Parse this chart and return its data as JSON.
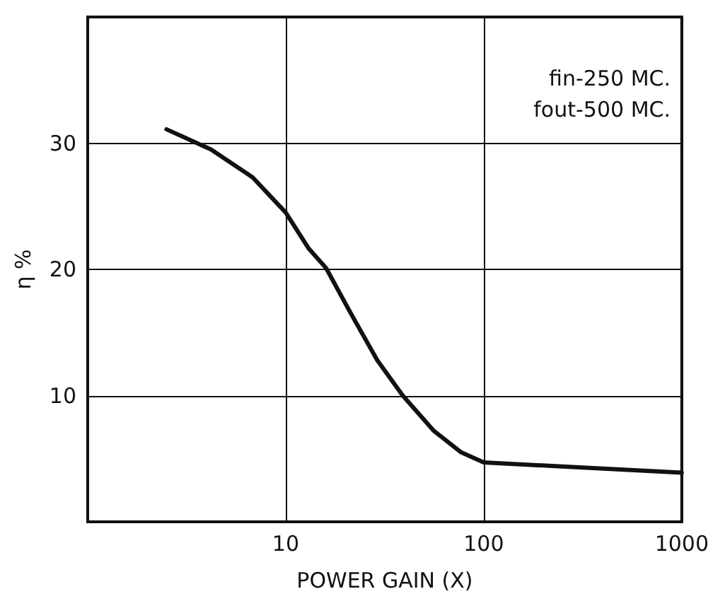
{
  "chart_data": {
    "type": "line",
    "xlabel": "POWER GAIN (X)",
    "ylabel": "η %",
    "annotations": [
      "fin-250 MC.",
      "fout-500 MC."
    ],
    "x": [
      2.5,
      4.2,
      6.8,
      10,
      13,
      16,
      21,
      29,
      39,
      56,
      77,
      100,
      240,
      1000
    ],
    "series": [
      {
        "color": "#111111",
        "values": [
          31.1,
          29.5,
          27.3,
          24.5,
          21.7,
          20.1,
          16.7,
          12.8,
          10.0,
          7.2,
          5.5,
          4.7,
          4.4,
          3.9
        ]
      }
    ],
    "log": "x",
    "xlim": [
      1,
      1000
    ],
    "xticks": [
      10,
      100,
      1000
    ],
    "ylim": [
      0,
      40
    ],
    "yticks": [
      10,
      20,
      30
    ],
    "grid": true,
    "marker": "none",
    "line_style": "solid"
  }
}
